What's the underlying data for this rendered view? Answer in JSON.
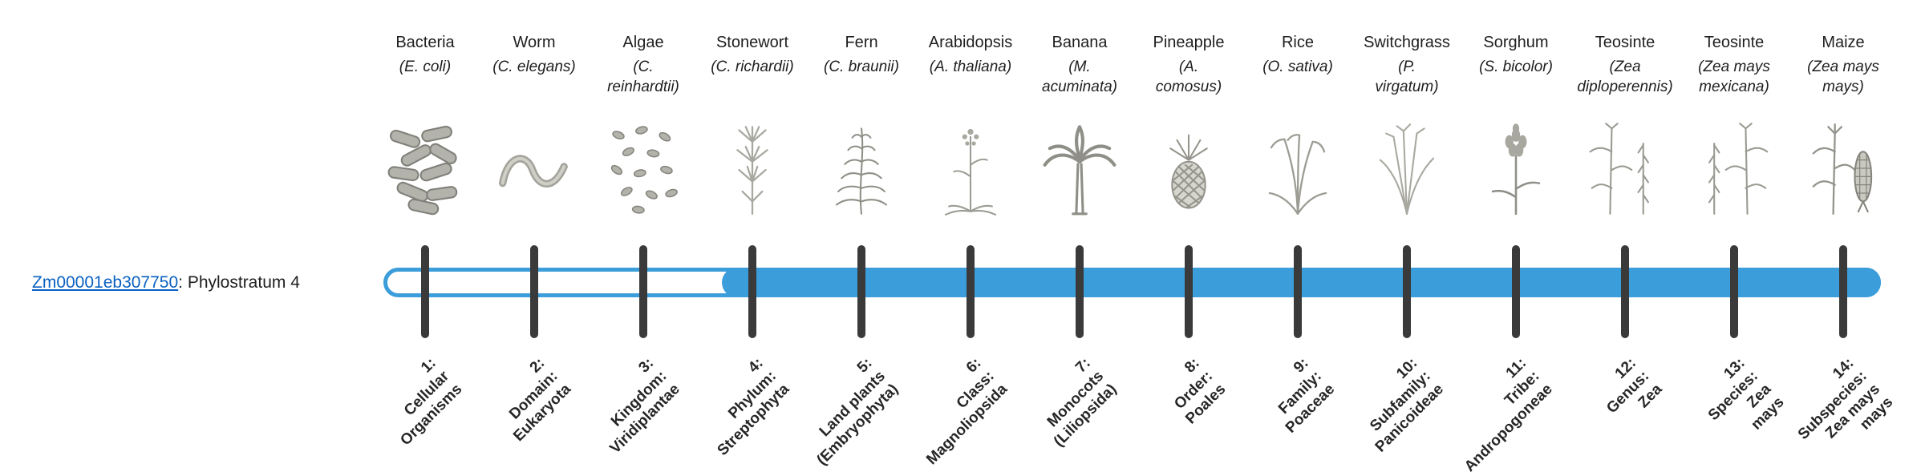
{
  "colors": {
    "bar_blue": "#3b9dd9",
    "tick": "#3a3a3a",
    "link_blue": "#0b61c1",
    "text": "#1f1f1f"
  },
  "gene": {
    "id": "Zm00001eb307750",
    "annotation": ": Phylostratum 4"
  },
  "bar": {
    "filled_from_stratum": 4,
    "total_strata": 14
  },
  "organisms": [
    {
      "name": "Bacteria",
      "scientific": "(E. coli)",
      "icon": "bacteria-illustration"
    },
    {
      "name": "Worm",
      "scientific": "(C. elegans)",
      "icon": "worm-illustration"
    },
    {
      "name": "Algae",
      "scientific": "(C.\nreinhardtii)",
      "icon": "algae-illustration"
    },
    {
      "name": "Stonewort",
      "scientific": "(C. richardii)",
      "icon": "stonewort-illustration"
    },
    {
      "name": "Fern",
      "scientific": "(C. braunii)",
      "icon": "fern-illustration"
    },
    {
      "name": "Arabidopsis",
      "scientific": "(A. thaliana)",
      "icon": "arabidopsis-illustration"
    },
    {
      "name": "Banana",
      "scientific": "(M.\nacuminata)",
      "icon": "banana-illustration"
    },
    {
      "name": "Pineapple",
      "scientific": "(A.\ncomosus)",
      "icon": "pineapple-illustration"
    },
    {
      "name": "Rice",
      "scientific": "(O. sativa)",
      "icon": "rice-illustration"
    },
    {
      "name": "Switchgrass",
      "scientific": "(P.\nvirgatum)",
      "icon": "switchgrass-illustration"
    },
    {
      "name": "Sorghum",
      "scientific": "(S. bicolor)",
      "icon": "sorghum-illustration"
    },
    {
      "name": "Teosinte",
      "scientific": "(Zea\ndiploperennis)",
      "icon": "teosinte-diploperennis-illustration"
    },
    {
      "name": "Teosinte",
      "scientific": "(Zea mays\nmexicana)",
      "icon": "teosinte-mexicana-illustration"
    },
    {
      "name": "Maize",
      "scientific": "(Zea mays\nmays)",
      "icon": "maize-illustration"
    }
  ],
  "phylostrata": [
    {
      "stratum": 1,
      "lines": [
        "1:",
        "Cellular",
        "Organisms"
      ]
    },
    {
      "stratum": 2,
      "lines": [
        "2:",
        "Domain:",
        "Eukaryota"
      ]
    },
    {
      "stratum": 3,
      "lines": [
        "3:",
        "Kingdom:",
        "Viridiplantae"
      ]
    },
    {
      "stratum": 4,
      "lines": [
        "4:",
        "Phylum:",
        "Streptophyta"
      ]
    },
    {
      "stratum": 5,
      "lines": [
        "5:",
        "Land plants",
        "(Embryophyta)"
      ]
    },
    {
      "stratum": 6,
      "lines": [
        "6:",
        "Class:",
        "Magnoliopsida"
      ]
    },
    {
      "stratum": 7,
      "lines": [
        "7:",
        "Monocots",
        "(Liliopsida)"
      ]
    },
    {
      "stratum": 8,
      "lines": [
        "8:",
        "Order:",
        "Poales"
      ]
    },
    {
      "stratum": 9,
      "lines": [
        "9:",
        "Family:",
        "Poaceae"
      ]
    },
    {
      "stratum": 10,
      "lines": [
        "10:",
        "Subfamily:",
        "Panicoideae"
      ]
    },
    {
      "stratum": 11,
      "lines": [
        "11:",
        "Tribe:",
        "Andropogoneae"
      ]
    },
    {
      "stratum": 12,
      "lines": [
        "12:",
        "Genus:",
        "Zea"
      ]
    },
    {
      "stratum": 13,
      "lines": [
        "13:",
        "Species:",
        "Zea",
        "mays"
      ]
    },
    {
      "stratum": 14,
      "lines": [
        "14:",
        "Subspecies:",
        "Zea mays",
        "mays"
      ]
    }
  ]
}
